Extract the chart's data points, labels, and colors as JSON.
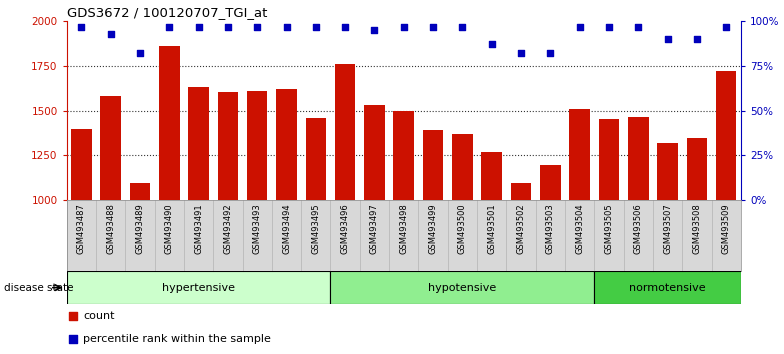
{
  "title": "GDS3672 / 100120707_TGI_at",
  "samples": [
    "GSM493487",
    "GSM493488",
    "GSM493489",
    "GSM493490",
    "GSM493491",
    "GSM493492",
    "GSM493493",
    "GSM493494",
    "GSM493495",
    "GSM493496",
    "GSM493497",
    "GSM493498",
    "GSM493499",
    "GSM493500",
    "GSM493501",
    "GSM493502",
    "GSM493503",
    "GSM493504",
    "GSM493505",
    "GSM493506",
    "GSM493507",
    "GSM493508",
    "GSM493509"
  ],
  "counts": [
    1400,
    1580,
    1095,
    1860,
    1630,
    1605,
    1610,
    1620,
    1460,
    1760,
    1530,
    1500,
    1390,
    1370,
    1270,
    1095,
    1195,
    1510,
    1455,
    1465,
    1320,
    1345,
    1720
  ],
  "percentile_ranks": [
    97,
    93,
    82,
    97,
    97,
    97,
    97,
    97,
    97,
    97,
    95,
    97,
    97,
    97,
    87,
    82,
    82,
    97,
    97,
    97,
    90,
    90,
    97
  ],
  "groups": [
    {
      "name": "hypertensive",
      "start": 0,
      "end": 9
    },
    {
      "name": "hypotensive",
      "start": 9,
      "end": 18
    },
    {
      "name": "normotensive",
      "start": 18,
      "end": 23
    }
  ],
  "group_colors": [
    "#ccffcc",
    "#90ee90",
    "#44cc44"
  ],
  "ylim": [
    1000,
    2000
  ],
  "yticks_left": [
    1000,
    1250,
    1500,
    1750,
    2000
  ],
  "yticks_right": [
    0,
    25,
    50,
    75,
    100
  ],
  "bar_color": "#cc1100",
  "dot_color": "#0000bb",
  "bg_color": "#ffffff",
  "left_axis_color": "#cc1100",
  "right_axis_color": "#0000bb",
  "xlabel_bg": "#d8d8d8",
  "grid_color": "#333333"
}
